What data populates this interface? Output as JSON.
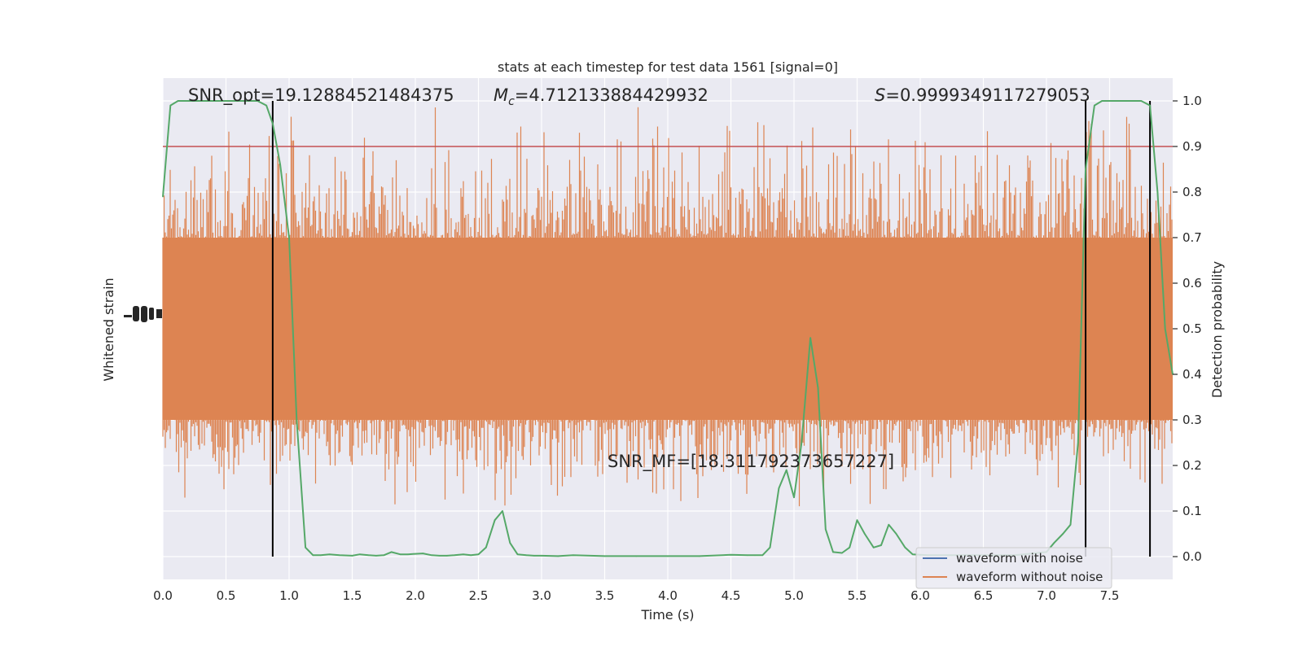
{
  "chart_data": {
    "type": "line",
    "title": "stats at each timestep for test data 1561 [signal=0]",
    "xlabel": "Time (s)",
    "ylabel_left": "Whitened strain",
    "ylabel_right": "Detection probability",
    "xlim": [
      0.0,
      8.0
    ],
    "ylim_right": [
      -0.05,
      1.05
    ],
    "x_ticks": [
      0.0,
      0.5,
      1.0,
      1.5,
      2.0,
      2.5,
      3.0,
      3.5,
      4.0,
      4.5,
      5.0,
      5.5,
      6.0,
      6.5,
      7.0,
      7.5
    ],
    "x_tick_labels": [
      "0.0",
      "0.5",
      "1.0",
      "1.5",
      "2.0",
      "2.5",
      "3.0",
      "3.5",
      "4.0",
      "4.5",
      "5.0",
      "5.5",
      "6.0",
      "6.5",
      "7.0",
      "7.5"
    ],
    "y_right_ticks": [
      0.0,
      0.1,
      0.2,
      0.3,
      0.4,
      0.5,
      0.6,
      0.7,
      0.8,
      0.9,
      1.0
    ],
    "y_right_tick_labels": [
      "0.0",
      "0.1",
      "0.2",
      "0.3",
      "0.4",
      "0.5",
      "0.6",
      "0.7",
      "0.8",
      "0.9",
      "1.0"
    ],
    "grid": true,
    "legend_position": "lower-right",
    "annotations": {
      "snr_opt": "SNR_opt=19.12884521484375",
      "mc_symbol": "M",
      "mc_subscript": "c",
      "mc_value": "=4.712133884429932",
      "s_symbol": "S",
      "s_value": "=0.9999349117279053",
      "snr_mf": "SNR_MF=[18.311792373657227]"
    },
    "threshold": 0.9,
    "vertical_markers": [
      0.87,
      7.31,
      7.82
    ],
    "series": [
      {
        "name": "waveform with noise",
        "color": "#4c72b0"
      },
      {
        "name": "waveform without noise",
        "color": "#dd8452",
        "band_core": [
          0.3,
          0.7
        ],
        "band_extent": [
          0.1,
          1.0
        ]
      },
      {
        "color": "#55a868",
        "x": [
          0.0,
          0.06,
          0.12,
          0.25,
          0.5,
          0.75,
          0.82,
          0.87,
          0.93,
          1.0,
          1.06,
          1.13,
          1.19,
          1.25,
          1.32,
          1.4,
          1.5,
          1.56,
          1.63,
          1.69,
          1.75,
          1.81,
          1.88,
          1.94,
          2.0,
          2.06,
          2.13,
          2.19,
          2.25,
          2.31,
          2.38,
          2.44,
          2.5,
          2.56,
          2.63,
          2.69,
          2.75,
          2.81,
          2.88,
          2.94,
          3.0,
          3.13,
          3.25,
          3.5,
          3.75,
          4.0,
          4.25,
          4.5,
          4.63,
          4.69,
          4.75,
          4.81,
          4.88,
          4.94,
          5.0,
          5.06,
          5.13,
          5.19,
          5.25,
          5.31,
          5.38,
          5.44,
          5.5,
          5.56,
          5.63,
          5.69,
          5.75,
          5.81,
          5.88,
          5.94,
          6.0,
          6.06,
          6.13,
          6.25,
          6.5,
          6.75,
          7.0,
          7.06,
          7.13,
          7.19,
          7.25,
          7.31,
          7.38,
          7.44,
          7.5,
          7.63,
          7.75,
          7.82,
          7.88,
          7.94,
          8.0
        ],
        "y": [
          0.79,
          0.99,
          1.0,
          1.0,
          1.0,
          1.0,
          0.99,
          0.95,
          0.86,
          0.7,
          0.3,
          0.02,
          0.003,
          0.003,
          0.005,
          0.003,
          0.002,
          0.005,
          0.003,
          0.002,
          0.003,
          0.01,
          0.005,
          0.005,
          0.006,
          0.007,
          0.003,
          0.002,
          0.002,
          0.003,
          0.005,
          0.003,
          0.005,
          0.02,
          0.08,
          0.1,
          0.03,
          0.005,
          0.003,
          0.002,
          0.002,
          0.001,
          0.003,
          0.001,
          0.001,
          0.001,
          0.001,
          0.004,
          0.003,
          0.003,
          0.003,
          0.02,
          0.15,
          0.19,
          0.13,
          0.25,
          0.48,
          0.37,
          0.06,
          0.01,
          0.008,
          0.02,
          0.08,
          0.05,
          0.02,
          0.025,
          0.07,
          0.05,
          0.02,
          0.005,
          0.004,
          0.003,
          0.003,
          0.003,
          0.003,
          0.003,
          0.01,
          0.03,
          0.05,
          0.07,
          0.25,
          0.85,
          0.99,
          1.0,
          1.0,
          1.0,
          1.0,
          0.99,
          0.8,
          0.5,
          0.4
        ]
      }
    ]
  }
}
